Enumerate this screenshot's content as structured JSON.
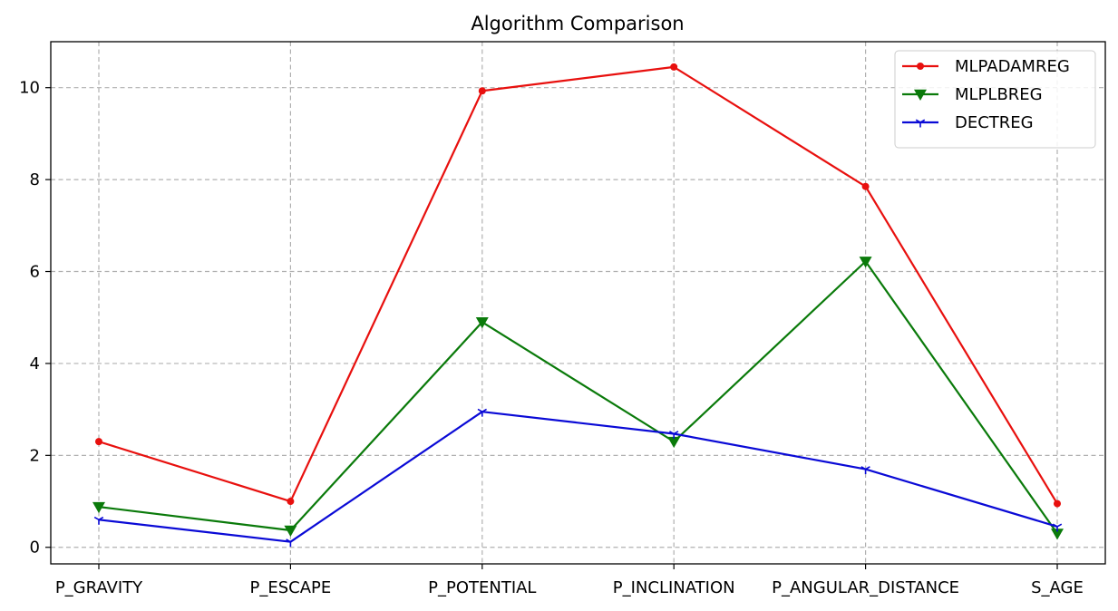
{
  "chart_data": {
    "type": "line",
    "title": "Algorithm Comparison",
    "xlabel": "",
    "ylabel": "",
    "categories": [
      "P_GRAVITY",
      "P_ESCAPE",
      "P_POTENTIAL",
      "P_INCLINATION",
      "P_ANGULAR_DISTANCE",
      "S_AGE"
    ],
    "yticks": [
      0,
      2,
      4,
      6,
      8,
      10
    ],
    "ylim": [
      -0.36,
      11.0
    ],
    "grid": true,
    "legend_position": "top-right",
    "series": [
      {
        "name": "MLPADAMREG",
        "color": "#e8100e",
        "marker": "dot",
        "values": [
          2.3,
          1.0,
          9.93,
          10.45,
          7.85,
          0.95
        ]
      },
      {
        "name": "MLPLBREG",
        "color": "#0a7a0a",
        "marker": "triangle-down",
        "values": [
          0.88,
          0.37,
          4.9,
          2.3,
          6.22,
          0.3
        ]
      },
      {
        "name": "DECTREG",
        "color": "#0a0ad6",
        "marker": "tri-down",
        "values": [
          0.6,
          0.12,
          2.95,
          2.47,
          1.7,
          0.45
        ]
      }
    ]
  }
}
